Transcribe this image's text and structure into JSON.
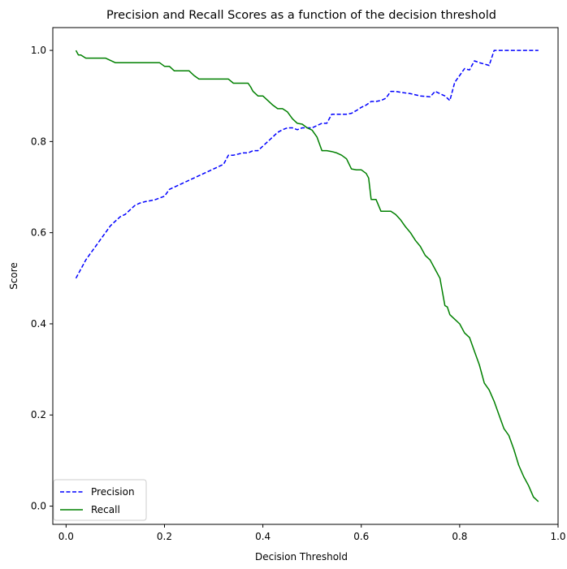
{
  "chart_data": {
    "type": "line",
    "title": "Precision and Recall Scores as a function of the decision threshold",
    "xlabel": "Decision Threshold",
    "ylabel": "Score",
    "xlim": [
      -0.027,
      1.0
    ],
    "ylim": [
      -0.04,
      1.05
    ],
    "xticks": [
      0.0,
      0.2,
      0.4,
      0.6,
      0.8,
      1.0
    ],
    "xtick_labels": [
      "0.0",
      "0.2",
      "0.4",
      "0.6",
      "0.8",
      "1.0"
    ],
    "yticks": [
      0.0,
      0.2,
      0.4,
      0.6,
      0.8,
      1.0
    ],
    "ytick_labels": [
      "0.0",
      "0.2",
      "0.4",
      "0.6",
      "0.8",
      "1.0"
    ],
    "grid": false,
    "legend_position": "lower-left",
    "series": [
      {
        "name": "Precision",
        "color": "#0000ff",
        "style": "dashed",
        "x": [
          0.02,
          0.03,
          0.04,
          0.05,
          0.06,
          0.07,
          0.08,
          0.09,
          0.1,
          0.11,
          0.12,
          0.13,
          0.14,
          0.15,
          0.16,
          0.18,
          0.2,
          0.21,
          0.22,
          0.24,
          0.25,
          0.26,
          0.28,
          0.3,
          0.32,
          0.33,
          0.34,
          0.36,
          0.37,
          0.38,
          0.39,
          0.4,
          0.41,
          0.42,
          0.43,
          0.44,
          0.45,
          0.46,
          0.47,
          0.48,
          0.49,
          0.5,
          0.51,
          0.52,
          0.53,
          0.54,
          0.55,
          0.56,
          0.57,
          0.58,
          0.59,
          0.6,
          0.61,
          0.62,
          0.63,
          0.64,
          0.65,
          0.66,
          0.67,
          0.68,
          0.7,
          0.72,
          0.74,
          0.75,
          0.76,
          0.77,
          0.78,
          0.79,
          0.8,
          0.81,
          0.82,
          0.83,
          0.84,
          0.85,
          0.86,
          0.87,
          0.88,
          0.9,
          0.92,
          0.94,
          0.96
        ],
        "y": [
          0.5,
          0.52,
          0.54,
          0.555,
          0.57,
          0.585,
          0.6,
          0.615,
          0.625,
          0.635,
          0.64,
          0.65,
          0.66,
          0.665,
          0.668,
          0.672,
          0.68,
          0.695,
          0.7,
          0.71,
          0.715,
          0.72,
          0.73,
          0.74,
          0.75,
          0.77,
          0.77,
          0.775,
          0.775,
          0.78,
          0.78,
          0.79,
          0.8,
          0.81,
          0.82,
          0.826,
          0.83,
          0.83,
          0.826,
          0.83,
          0.83,
          0.83,
          0.835,
          0.84,
          0.84,
          0.86,
          0.86,
          0.86,
          0.86,
          0.862,
          0.868,
          0.875,
          0.88,
          0.888,
          0.888,
          0.89,
          0.895,
          0.91,
          0.91,
          0.908,
          0.905,
          0.9,
          0.898,
          0.91,
          0.905,
          0.9,
          0.89,
          0.93,
          0.945,
          0.96,
          0.957,
          0.977,
          0.973,
          0.97,
          0.967,
          1.0,
          1.0,
          1.0,
          1.0,
          1.0,
          1.0
        ]
      },
      {
        "name": "Recall",
        "color": "#008000",
        "style": "solid",
        "x": [
          0.02,
          0.025,
          0.03,
          0.04,
          0.045,
          0.06,
          0.08,
          0.1,
          0.11,
          0.13,
          0.15,
          0.17,
          0.19,
          0.2,
          0.21,
          0.22,
          0.23,
          0.25,
          0.26,
          0.27,
          0.29,
          0.31,
          0.33,
          0.34,
          0.35,
          0.37,
          0.375,
          0.38,
          0.39,
          0.4,
          0.41,
          0.42,
          0.43,
          0.44,
          0.45,
          0.46,
          0.47,
          0.48,
          0.49,
          0.5,
          0.51,
          0.52,
          0.53,
          0.54,
          0.55,
          0.56,
          0.57,
          0.58,
          0.59,
          0.6,
          0.61,
          0.615,
          0.62,
          0.63,
          0.64,
          0.65,
          0.66,
          0.67,
          0.68,
          0.69,
          0.7,
          0.71,
          0.72,
          0.73,
          0.74,
          0.75,
          0.76,
          0.77,
          0.775,
          0.78,
          0.79,
          0.8,
          0.81,
          0.82,
          0.83,
          0.84,
          0.85,
          0.86,
          0.87,
          0.88,
          0.89,
          0.9,
          0.91,
          0.92,
          0.93,
          0.94,
          0.95,
          0.96
        ],
        "y": [
          1.0,
          0.99,
          0.99,
          0.983,
          0.983,
          0.983,
          0.983,
          0.973,
          0.973,
          0.973,
          0.973,
          0.973,
          0.973,
          0.965,
          0.965,
          0.955,
          0.955,
          0.955,
          0.945,
          0.937,
          0.937,
          0.937,
          0.937,
          0.928,
          0.928,
          0.928,
          0.92,
          0.91,
          0.9,
          0.9,
          0.89,
          0.88,
          0.872,
          0.872,
          0.865,
          0.85,
          0.84,
          0.838,
          0.83,
          0.825,
          0.81,
          0.78,
          0.78,
          0.778,
          0.775,
          0.77,
          0.762,
          0.74,
          0.738,
          0.738,
          0.73,
          0.72,
          0.673,
          0.673,
          0.647,
          0.647,
          0.647,
          0.64,
          0.628,
          0.613,
          0.6,
          0.583,
          0.57,
          0.55,
          0.54,
          0.52,
          0.5,
          0.44,
          0.437,
          0.42,
          0.41,
          0.4,
          0.38,
          0.37,
          0.34,
          0.31,
          0.27,
          0.255,
          0.23,
          0.2,
          0.17,
          0.155,
          0.125,
          0.09,
          0.065,
          0.045,
          0.02,
          0.01
        ]
      }
    ]
  }
}
